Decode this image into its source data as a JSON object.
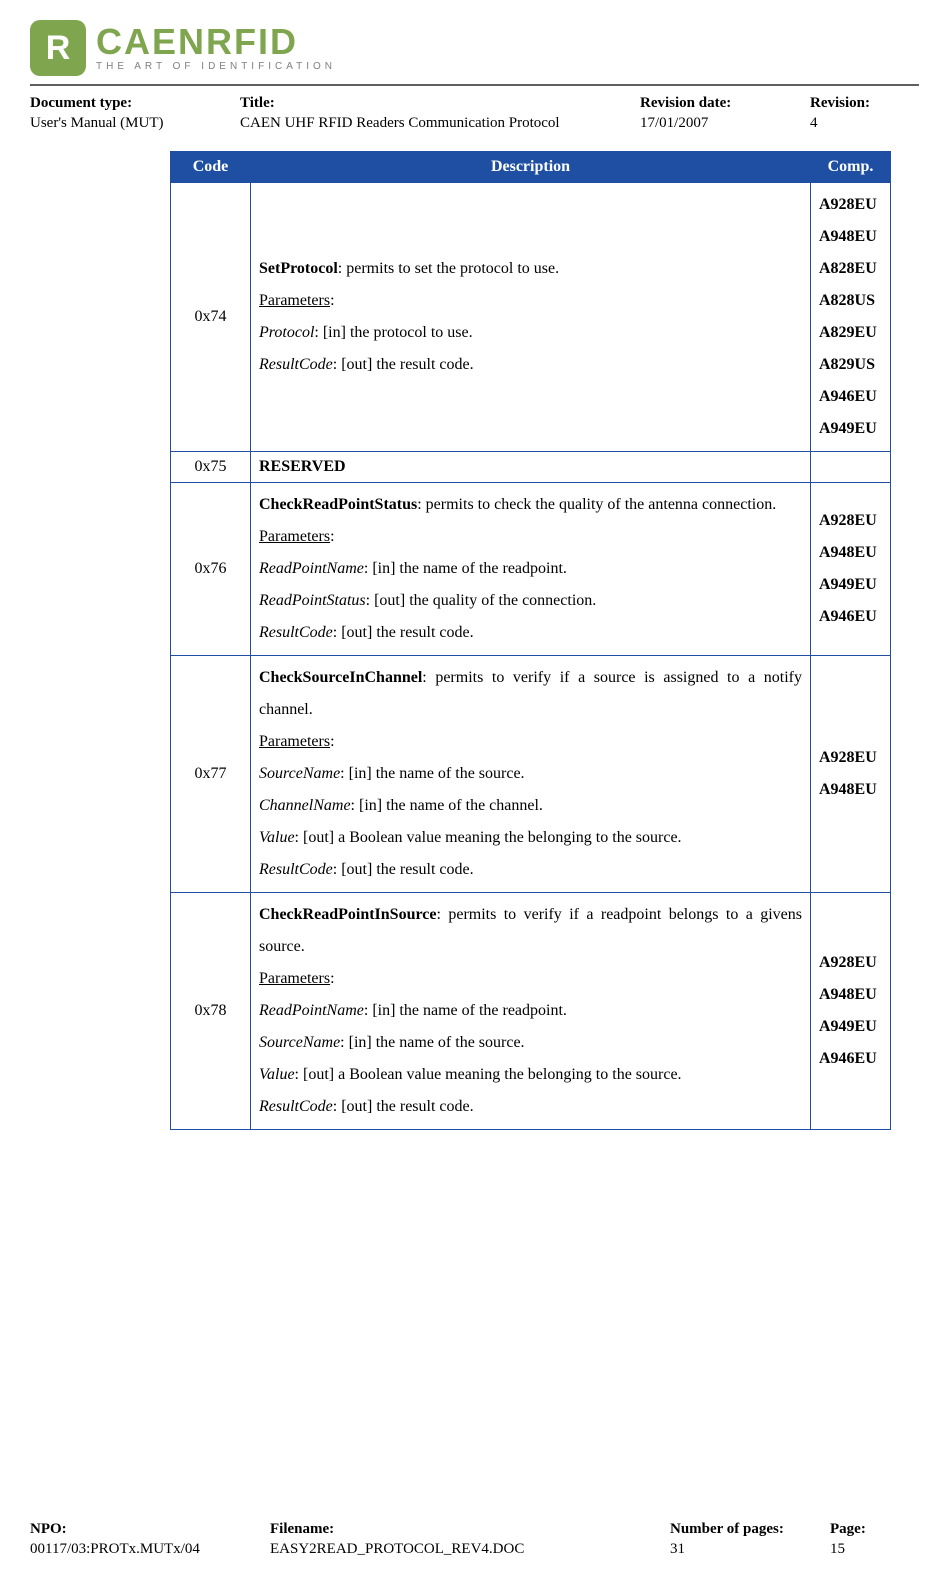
{
  "logo": {
    "badge_letter": "R",
    "brand": "CAENRFID",
    "tagline": "THE ART OF IDENTIFICATION",
    "badge_bg": "#7fa64f",
    "brand_color": "#7fa64f",
    "tagline_color": "#808080"
  },
  "header_meta": {
    "doc_type_label": "Document type:",
    "doc_type_value": "User's Manual (MUT)",
    "title_label": "Title:",
    "title_value": "CAEN UHF RFID Readers Communication Protocol",
    "rev_date_label": "Revision date:",
    "rev_date_value": "17/01/2007",
    "revision_label": "Revision:",
    "revision_value": "4"
  },
  "table": {
    "border_color": "#1f4fa3",
    "header_bg": "#1f4fa3",
    "header_fg": "#ffffff",
    "col_code": "Code",
    "col_desc": "Description",
    "col_comp": "Comp.",
    "rows": [
      {
        "code": "0x74",
        "cmd": "SetProtocol",
        "summary": ": permits to set the protocol to use.",
        "justify": false,
        "params_label": "Parameters",
        "params": [
          {
            "name": "Protocol",
            "text": ": [in] the protocol to use."
          },
          {
            "name": "ResultCode",
            "text": ": [out] the result code."
          }
        ],
        "comp": [
          "A928EU",
          "A948EU",
          "A828EU",
          "A828US",
          "A829EU",
          "A829US",
          "A946EU",
          "A949EU"
        ]
      },
      {
        "code": "0x75",
        "reserved": "RESERVED"
      },
      {
        "code": "0x76",
        "cmd": "CheckReadPointStatus",
        "summary": ": permits to check the quality of the antenna connection.",
        "justify": true,
        "params_label": "Parameters",
        "params": [
          {
            "name": "ReadPointName",
            "text": ": [in] the name of the readpoint."
          },
          {
            "name": "ReadPointStatus",
            "text": ": [out] the quality of the connection."
          },
          {
            "name": "ResultCode",
            "text": ": [out] the result code."
          }
        ],
        "comp": [
          "A928EU",
          "A948EU",
          "A949EU",
          "A946EU"
        ]
      },
      {
        "code": "0x77",
        "cmd": "CheckSourceInChannel",
        "summary": ": permits to verify if a source is assigned to a notify channel.",
        "justify": true,
        "params_label": "Parameters",
        "params": [
          {
            "name": "SourceName",
            "text": ": [in] the name of the source."
          },
          {
            "name": "ChannelName",
            "text": ": [in] the name of the channel."
          },
          {
            "name": "Value",
            "text": ": [out] a Boolean value meaning the belonging to the source."
          },
          {
            "name": "ResultCode",
            "text": ": [out] the result code."
          }
        ],
        "comp": [
          "A928EU",
          "A948EU"
        ]
      },
      {
        "code": "0x78",
        "cmd": "CheckReadPointInSource",
        "summary": ": permits to verify if a readpoint belongs to a givens source.",
        "justify": true,
        "params_label": "Parameters",
        "params": [
          {
            "name": "ReadPointName",
            "text": ": [in] the name of the readpoint."
          },
          {
            "name": "SourceName",
            "text": ": [in] the name of the source."
          },
          {
            "name": "Value",
            "text": ": [out] a Boolean value meaning the belonging to the source."
          },
          {
            "name": "ResultCode",
            "text": ": [out] the result code."
          }
        ],
        "comp": [
          "A928EU",
          "A948EU",
          "A949EU",
          "A946EU"
        ]
      }
    ]
  },
  "footer_meta": {
    "npo_label": "NPO:",
    "npo_value": "00117/03:PROTx.MUTx/04",
    "filename_label": "Filename:",
    "filename_value": "EASY2READ_PROTOCOL_REV4.DOC",
    "pages_label": "Number of pages:",
    "pages_value": "31",
    "page_label": "Page:",
    "page_value": "15"
  }
}
